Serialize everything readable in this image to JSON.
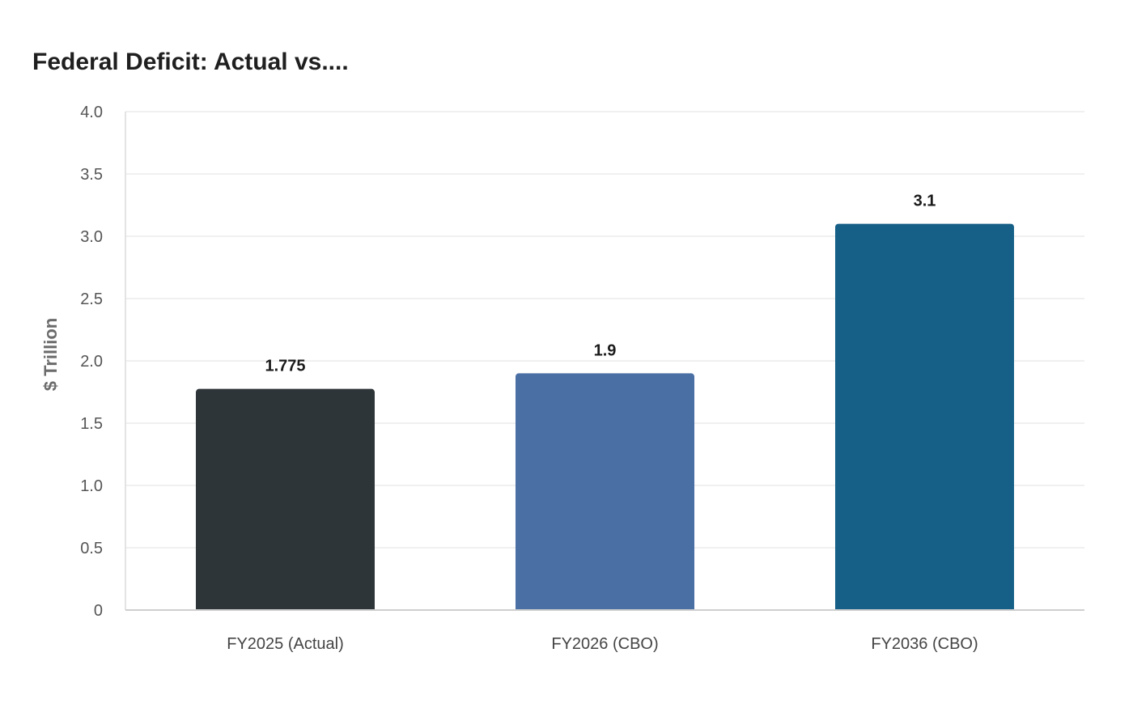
{
  "chart_data": {
    "type": "bar",
    "title": "Federal Deficit: Actual vs....",
    "xlabel": "",
    "ylabel": "$ Trillion",
    "categories": [
      "FY2025 (Actual)",
      "FY2026 (CBO)",
      "FY2036 (CBO)"
    ],
    "values": [
      1.775,
      1.9,
      3.1
    ],
    "value_labels": [
      "1.775",
      "1.9",
      "3.1"
    ],
    "colors": [
      "#2e3538",
      "#4a6fa5",
      "#166088"
    ],
    "ylim": [
      0,
      4
    ],
    "yticks": [
      0,
      0.5,
      1,
      1.5,
      2,
      2.5,
      3,
      3.5,
      4
    ],
    "ytick_labels": [
      "0",
      "0.5",
      "1.0",
      "1.5",
      "2.0",
      "2.5",
      "3.0",
      "3.5",
      "4.0"
    ],
    "grid": true,
    "legend": "none"
  }
}
